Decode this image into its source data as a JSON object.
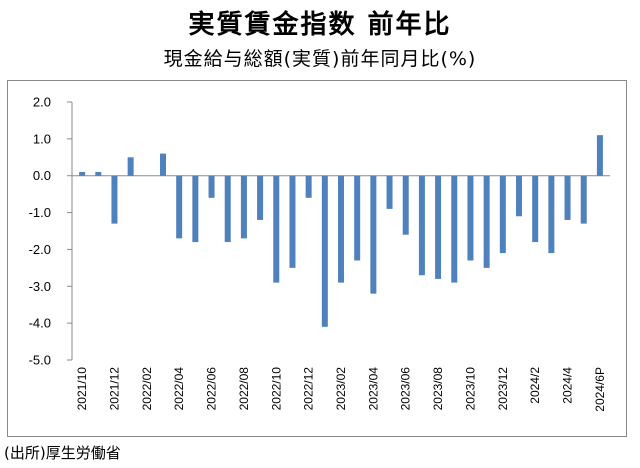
{
  "title": "実質賃金指数 前年比",
  "subtitle": "現金給与総額(実質)前年同月比(%)",
  "source": "(出所)厚生労働省",
  "colors": {
    "bar": "#4f81bd",
    "axis": "#8a8a8a"
  },
  "chart_data": {
    "type": "bar",
    "ylim": [
      -5.0,
      2.0
    ],
    "yticks": [
      "2.0",
      "1.0",
      "0.0",
      "-1.0",
      "-2.0",
      "-3.0",
      "-4.0",
      "-5.0"
    ],
    "grid": false,
    "categories": [
      "2021/10",
      "2021/11",
      "2021/12",
      "2022/01",
      "2022/02",
      "2022/03",
      "2022/04",
      "2022/05",
      "2022/06",
      "2022/07",
      "2022/08",
      "2022/09",
      "2022/10",
      "2022/11",
      "2022/12",
      "2023/01",
      "2023/02",
      "2023/03",
      "2023/04",
      "2023/05",
      "2023/06",
      "2023/07",
      "2023/08",
      "2023/09",
      "2023/10",
      "2023/11",
      "2023/12",
      "2024/1",
      "2024/2",
      "2024/3",
      "2024/4",
      "2024/5",
      "2024/6P"
    ],
    "values": [
      0.1,
      0.1,
      -1.3,
      0.5,
      0.0,
      0.6,
      -1.7,
      -1.8,
      -0.6,
      -1.8,
      -1.7,
      -1.2,
      -2.9,
      -2.5,
      -0.6,
      -4.1,
      -2.9,
      -2.3,
      -3.2,
      -0.9,
      -1.6,
      -2.7,
      -2.8,
      -2.9,
      -2.3,
      -2.5,
      -2.1,
      -1.1,
      -1.8,
      -2.1,
      -1.2,
      -1.3,
      1.1
    ],
    "visible_tick_labels": [
      "2021/10",
      "2021/12",
      "2022/02",
      "2022/04",
      "2022/06",
      "2022/08",
      "2022/10",
      "2022/12",
      "2023/02",
      "2023/04",
      "2023/06",
      "2023/08",
      "2023/10",
      "2023/12",
      "2024/2",
      "2024/4",
      "2024/6P"
    ]
  }
}
